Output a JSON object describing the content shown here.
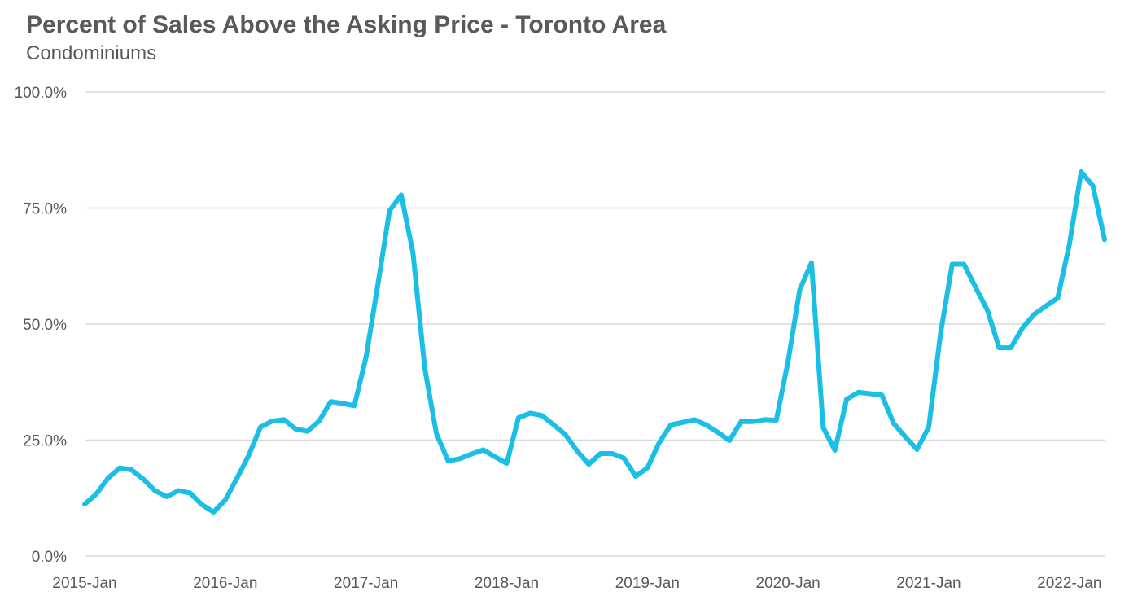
{
  "title": "Percent of Sales Above the Asking Price - Toronto Area",
  "subtitle": "Condominiums",
  "chart_data": {
    "type": "line",
    "title": "Percent of Sales Above the Asking Price - Toronto Area",
    "subtitle": "Condominiums",
    "xlabel": "",
    "ylabel": "",
    "ylim": [
      0,
      100
    ],
    "yticks": [
      "0.0%",
      "25.0%",
      "50.0%",
      "75.0%",
      "100.0%"
    ],
    "ytick_values": [
      0,
      25,
      50,
      75,
      100
    ],
    "xticks": [
      "2015-Jan",
      "2016-Jan",
      "2017-Jan",
      "2018-Jan",
      "2019-Jan",
      "2020-Jan",
      "2021-Jan",
      "2022-Jan"
    ],
    "grid": true,
    "legend": "none",
    "line_color": "#1bbfe6",
    "x": [
      "2015-01",
      "2015-02",
      "2015-03",
      "2015-04",
      "2015-05",
      "2015-06",
      "2015-07",
      "2015-08",
      "2015-09",
      "2015-10",
      "2015-11",
      "2015-12",
      "2016-01",
      "2016-02",
      "2016-03",
      "2016-04",
      "2016-05",
      "2016-06",
      "2016-07",
      "2016-08",
      "2016-09",
      "2016-10",
      "2016-11",
      "2016-12",
      "2017-01",
      "2017-02",
      "2017-03",
      "2017-04",
      "2017-05",
      "2017-06",
      "2017-07",
      "2017-08",
      "2017-09",
      "2017-10",
      "2017-11",
      "2017-12",
      "2018-01",
      "2018-02",
      "2018-03",
      "2018-04",
      "2018-05",
      "2018-06",
      "2018-07",
      "2018-08",
      "2018-09",
      "2018-10",
      "2018-11",
      "2018-12",
      "2019-01",
      "2019-02",
      "2019-03",
      "2019-04",
      "2019-05",
      "2019-06",
      "2019-07",
      "2019-08",
      "2019-09",
      "2019-10",
      "2019-11",
      "2019-12",
      "2020-01",
      "2020-02",
      "2020-03",
      "2020-04",
      "2020-05",
      "2020-06",
      "2020-07",
      "2020-08",
      "2020-09",
      "2020-10",
      "2020-11",
      "2020-12",
      "2021-01",
      "2021-02",
      "2021-03",
      "2021-04",
      "2021-05",
      "2021-06",
      "2021-07",
      "2021-08",
      "2021-09",
      "2021-10",
      "2021-11",
      "2021-12",
      "2022-01",
      "2022-02",
      "2022-03",
      "2022-04"
    ],
    "series": [
      {
        "values": [
          11.2,
          13.4,
          16.8,
          19.0,
          18.6,
          16.6,
          14.1,
          12.8,
          14.1,
          13.6,
          11.1,
          9.5,
          12.1,
          16.8,
          21.7,
          27.8,
          29.1,
          29.4,
          27.4,
          26.9,
          29.1,
          33.3,
          32.9,
          32.4,
          42.9,
          58.4,
          74.4,
          77.8,
          65.4,
          40.6,
          26.4,
          20.5,
          21.0,
          22.0,
          22.9,
          21.4,
          20.0,
          29.8,
          30.8,
          30.3,
          28.3,
          26.2,
          22.7,
          19.8,
          22.1,
          22.1,
          21.1,
          17.2,
          19.0,
          24.4,
          28.3,
          28.8,
          29.4,
          28.3,
          26.7,
          24.9,
          29.0,
          29.0,
          29.4,
          29.3,
          41.9,
          57.4,
          63.2,
          27.7,
          22.8,
          33.8,
          35.3,
          35.0,
          34.7,
          28.6,
          25.7,
          23.0,
          27.8,
          47.9,
          62.9,
          62.9,
          57.9,
          53.0,
          44.9,
          44.9,
          49.2,
          52.1,
          53.9,
          55.6,
          67.2,
          82.8,
          79.8,
          68.2
        ]
      }
    ]
  }
}
